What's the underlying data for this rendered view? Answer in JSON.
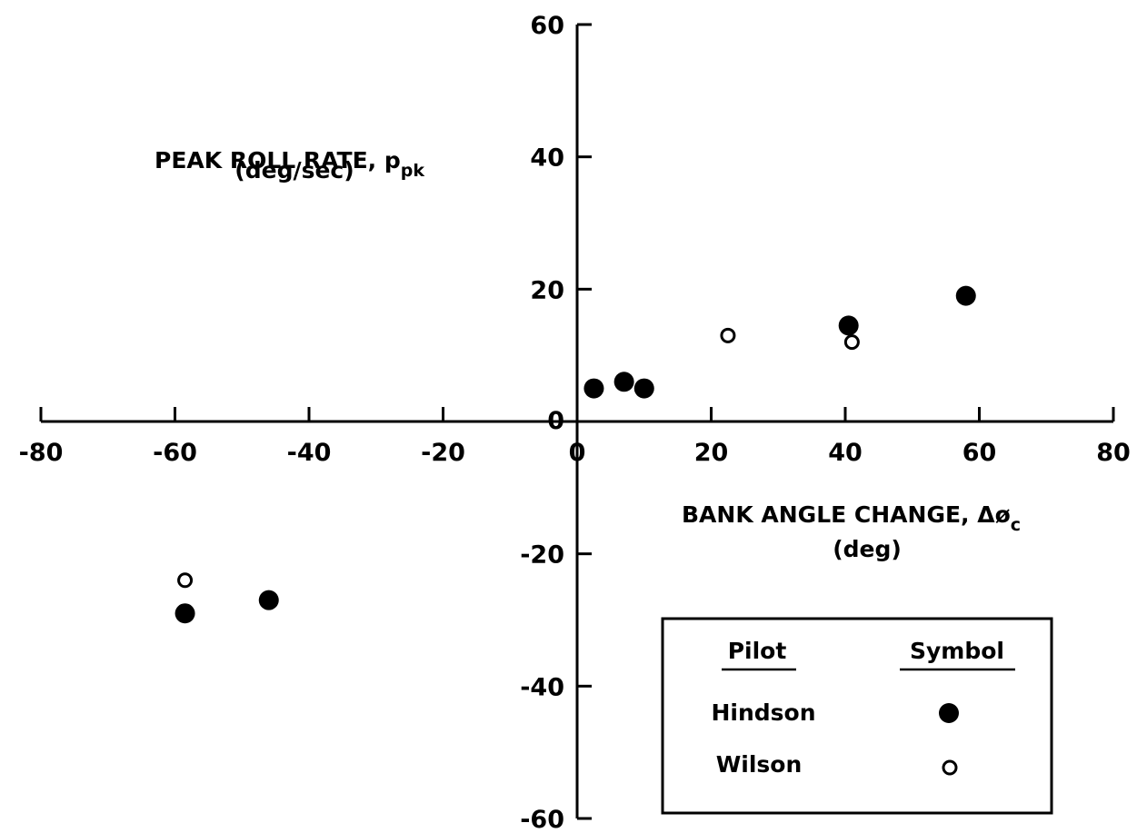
{
  "chart_data": {
    "type": "scatter",
    "title": "",
    "ylabel": {
      "line1": "PEAK ROLL RATE, p",
      "line1_sub": "pk",
      "line2": "(deg/sec)"
    },
    "xlabel": {
      "line1": "BANK ANGLE CHANGE, Δø",
      "line1_sub": "c",
      "line2": "(deg)"
    },
    "xlim": [
      -80,
      80
    ],
    "ylim": [
      -60,
      60
    ],
    "x_ticks": [
      -80,
      -60,
      -40,
      -20,
      0,
      20,
      40,
      60,
      80
    ],
    "x_tick_labels": [
      "-80",
      "-60",
      "-40",
      "-20",
      "0",
      "20",
      "40",
      "60",
      "80"
    ],
    "y_ticks": [
      60,
      40,
      20,
      0,
      -20,
      -40,
      -60
    ],
    "y_tick_labels": [
      "60",
      "40",
      "20",
      "0",
      "-20",
      "-40",
      "-60"
    ],
    "grid": false,
    "legend": {
      "placement": "bottom-right",
      "header_series": "Pilot",
      "header_symbol": "Symbol"
    },
    "series": [
      {
        "name": "Hindson",
        "marker": "filled-circle",
        "color": "#000000",
        "points": [
          {
            "x": 2.5,
            "y": 5.0
          },
          {
            "x": 7.0,
            "y": 6.0
          },
          {
            "x": 10.0,
            "y": 5.0
          },
          {
            "x": 40.5,
            "y": 14.5
          },
          {
            "x": 58.0,
            "y": 19.0
          },
          {
            "x": -58.5,
            "y": -29.0
          },
          {
            "x": -46.0,
            "y": -27.0
          }
        ]
      },
      {
        "name": "Wilson",
        "marker": "open-circle",
        "color": "#000000",
        "points": [
          {
            "x": 22.5,
            "y": 13.0
          },
          {
            "x": 41.0,
            "y": 12.0
          },
          {
            "x": -58.5,
            "y": -24.0
          }
        ]
      }
    ]
  }
}
